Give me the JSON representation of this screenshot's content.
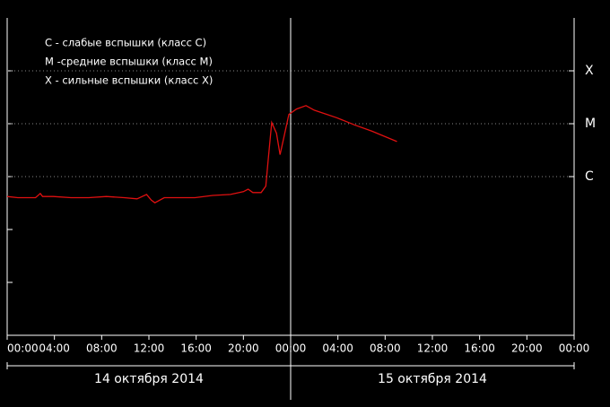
{
  "chart_data": {
    "type": "line",
    "log_y": true,
    "xlim": [
      0,
      48
    ],
    "ylim": [
      1e-09,
      0.001
    ],
    "xticks": [
      {
        "value": 0,
        "label": "00:00"
      },
      {
        "value": 4,
        "label": "04:00"
      },
      {
        "value": 8,
        "label": "08:00"
      },
      {
        "value": 12,
        "label": "12:00"
      },
      {
        "value": 16,
        "label": "16:00"
      },
      {
        "value": 20,
        "label": "20:00"
      },
      {
        "value": 24,
        "label": "00:00"
      },
      {
        "value": 28,
        "label": "04:00"
      },
      {
        "value": 32,
        "label": "08:00"
      },
      {
        "value": 36,
        "label": "12:00"
      },
      {
        "value": 40,
        "label": "16:00"
      },
      {
        "value": 44,
        "label": "20:00"
      },
      {
        "value": 48,
        "label": "00:00"
      }
    ],
    "yticks": [
      {
        "value": 1e-06,
        "label": "C"
      },
      {
        "value": 1e-05,
        "label": "M"
      },
      {
        "value": 0.0001,
        "label": "X"
      }
    ],
    "minor_yticks": [
      1e-08,
      1e-07,
      1e-06,
      1e-05,
      0.0001
    ],
    "grid": true,
    "marker_x": 24,
    "notes": [
      "C - слабые вспышки (класс C)",
      "M -средние вспышки (класс M)",
      "X - сильные вспышки (класс X)"
    ],
    "days": [
      {
        "label": "14 октября 2014",
        "start": 0,
        "end": 24
      },
      {
        "label": "15 октября 2014",
        "start": 24,
        "end": 48
      }
    ],
    "series": [
      {
        "color": "#e01010",
        "x": [
          0,
          0.9,
          2.4,
          2.8,
          3.0,
          3.9,
          5.4,
          6.9,
          8.4,
          9.9,
          11.0,
          11.8,
          12.2,
          12.5,
          13.3,
          14.4,
          15.9,
          17.4,
          18.9,
          20.0,
          20.4,
          20.8,
          21.5,
          21.9,
          22.1,
          22.4,
          22.8,
          23.1,
          23.4,
          23.85,
          24.5,
          25.3,
          26.0,
          27.9,
          29.4,
          30.9,
          33.0
        ],
        "values": [
          4.2e-07,
          4e-07,
          4e-07,
          4.8e-07,
          4.2e-07,
          4.2e-07,
          4e-07,
          4e-07,
          4.2e-07,
          4e-07,
          3.8e-07,
          4.6e-07,
          3.6e-07,
          3.2e-07,
          4e-07,
          4e-07,
          4e-07,
          4.4e-07,
          4.6e-07,
          5.2e-07,
          5.8e-07,
          5e-07,
          5e-07,
          6.6e-07,
          2.1e-06,
          1.05e-05,
          6.6e-06,
          2.6e-06,
          5.2e-06,
          1.5e-05,
          1.9e-05,
          2.2e-05,
          1.8e-05,
          1.3e-05,
          9.5e-06,
          7.2e-06,
          4.6e-06
        ]
      }
    ]
  }
}
